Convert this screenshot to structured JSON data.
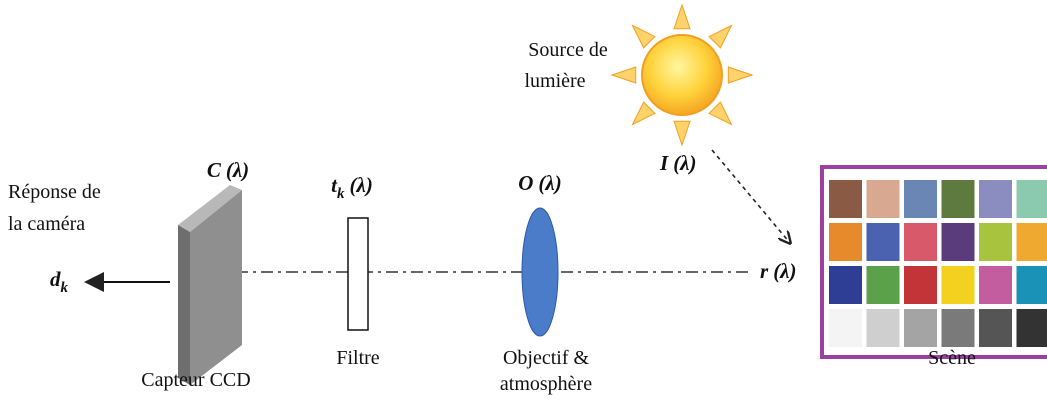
{
  "light_source": {
    "lines": [
      "Source de",
      "lumière"
    ],
    "symbol": {
      "base": "I",
      "arg": "(λ)"
    }
  },
  "sensor": {
    "name": "Capteur CCD",
    "symbol": {
      "base": "C",
      "arg": "(λ)"
    }
  },
  "filter": {
    "name": "Filtre",
    "symbol": {
      "base": "t",
      "sub": "k",
      "arg": "(λ)"
    }
  },
  "lens": {
    "lines": [
      "Objectif &",
      "atmosphère"
    ],
    "symbol": {
      "base": "O",
      "arg": "(λ)"
    }
  },
  "scene": {
    "name": "Scène",
    "symbol": {
      "base": "r",
      "arg": "(λ)"
    }
  },
  "output": {
    "lines": [
      "Réponse de",
      "la caméra"
    ],
    "symbol": {
      "base": "d",
      "sub": "k"
    }
  }
}
